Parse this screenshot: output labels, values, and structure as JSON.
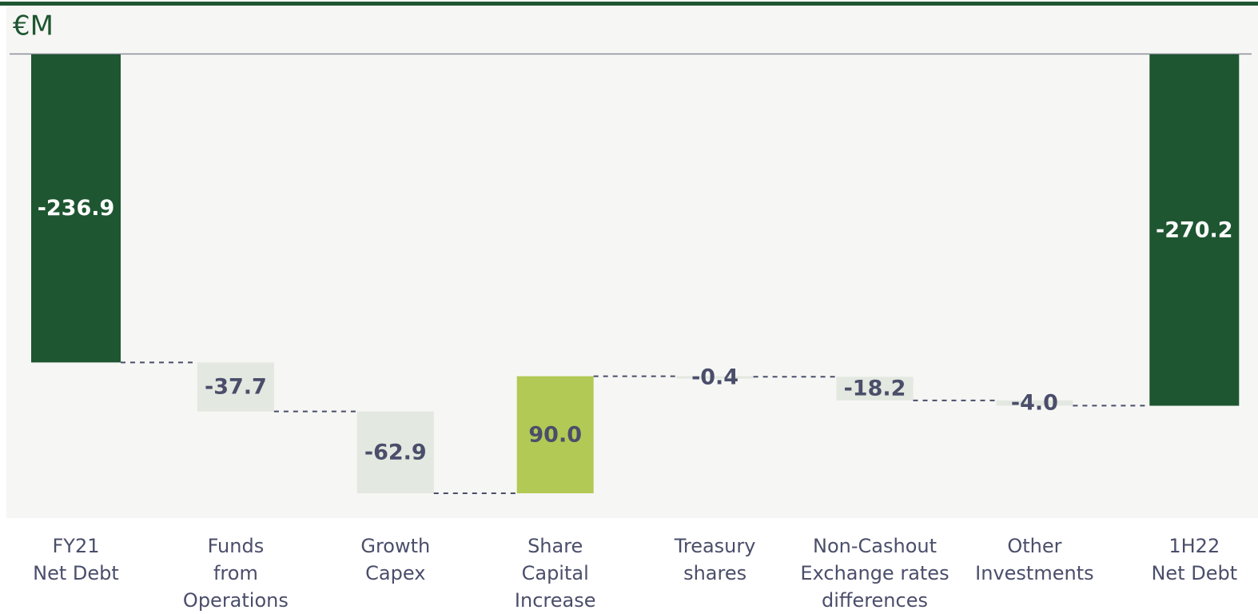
{
  "chart_data": {
    "type": "waterfall",
    "title": "€M",
    "categories": [
      [
        "FY21",
        "Net Debt"
      ],
      [
        "Funds",
        "from",
        "Operations"
      ],
      [
        "Growth",
        "Capex"
      ],
      [
        "Share",
        "Capital",
        "Increase"
      ],
      [
        "Treasury",
        "shares"
      ],
      [
        "Non-Cashout",
        "Exchange rates",
        "differences"
      ],
      [
        "Other",
        "Investments"
      ],
      [
        "1H22",
        "Net Debt"
      ]
    ],
    "values": [
      -236.9,
      -37.7,
      -62.9,
      90.0,
      -0.4,
      -18.2,
      -4.0,
      -270.2
    ],
    "value_labels": [
      "-236.9",
      "-37.7",
      "-62.9",
      "90.0",
      "-0.4",
      "-18.2",
      "-4.0",
      "-270.2"
    ],
    "total_color": "#1e5631",
    "decrease_color": "#e3e8e0",
    "increase_color": "#b2c955"
  }
}
